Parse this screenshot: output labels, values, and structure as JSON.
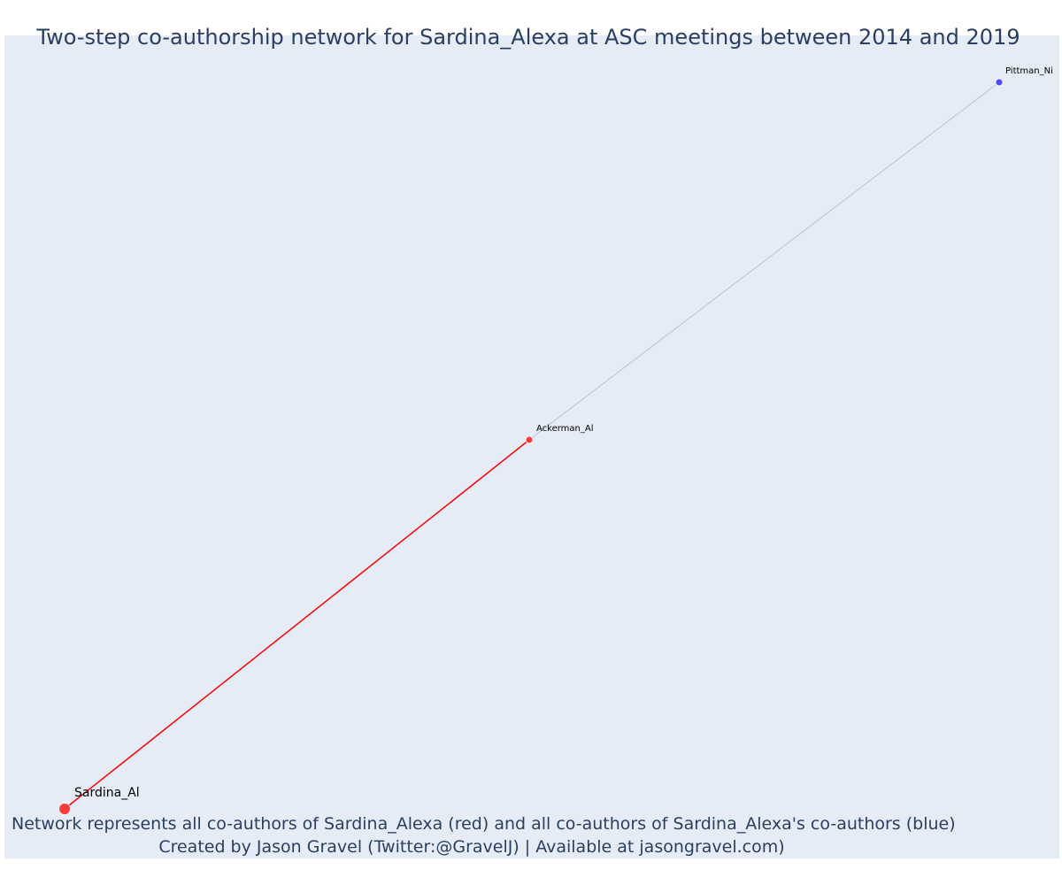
{
  "title": "Two-step co-authorship network for Sardina_Alexa at ASC meetings between 2014 and 2019",
  "caption": {
    "line1": "Network represents all co-authors of Sardina_Alexa (red) and all co-authors of Sardina_Alexa's co-authors (blue)",
    "line2": "Created by Jason Gravel (Twitter:@GravelJ) | Available at jasongravel.com)"
  },
  "colors": {
    "background": "#e5ecf6",
    "ego": "#ff2b2b",
    "first_step": "#ff2b2b",
    "second_step": "#3b3bff",
    "first_step_edge": "#ff0000",
    "second_step_edge": "#bcc3d0"
  },
  "chart_data": {
    "type": "network",
    "nodes": [
      {
        "id": "Sardina_Al",
        "label": "Sardina_Al",
        "group": "ego"
      },
      {
        "id": "Ackerman_Al",
        "label": "Ackerman_Al",
        "group": "first_step"
      },
      {
        "id": "Pittman_Ni",
        "label": "Pittman_Ni",
        "group": "second_step"
      }
    ],
    "edges": [
      {
        "source": "Sardina_Al",
        "target": "Ackerman_Al",
        "group": "first_step"
      },
      {
        "source": "Ackerman_Al",
        "target": "Pittman_Ni",
        "group": "second_step"
      }
    ]
  }
}
